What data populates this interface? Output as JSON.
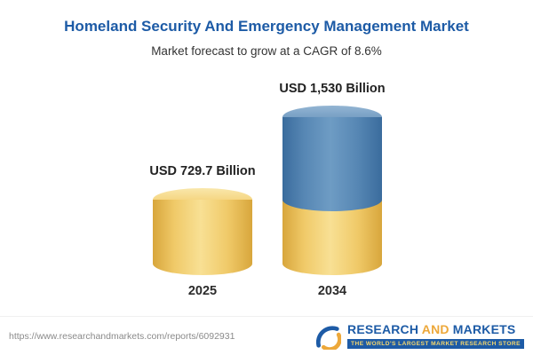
{
  "title": "Homeland Security And Emergency Management Market",
  "subtitle": "Market forecast to grow at a CAGR of 8.6%",
  "chart_data": {
    "type": "bar",
    "categories": [
      "2025",
      "2034"
    ],
    "values": [
      729.7,
      1530
    ],
    "value_labels": [
      "USD 729.7 Billion",
      "USD 1,530 Billion"
    ],
    "unit": "USD Billion",
    "cagr": "8.6%",
    "title": "Homeland Security And Emergency Management Market",
    "subtitle": "Market forecast to grow at a CAGR of 8.6%",
    "colors": {
      "base_segment": "#F0CA69",
      "growth_segment": "#5787B4"
    },
    "legend_position": "none",
    "grid": false
  },
  "footer": {
    "url": "https://www.researchandmarkets.com/reports/6092931",
    "logo": {
      "part1": "RESEARCH",
      "part2": "AND",
      "part3": "MARKETS",
      "tagline": "THE WORLD'S LARGEST MARKET RESEARCH STORE"
    }
  }
}
